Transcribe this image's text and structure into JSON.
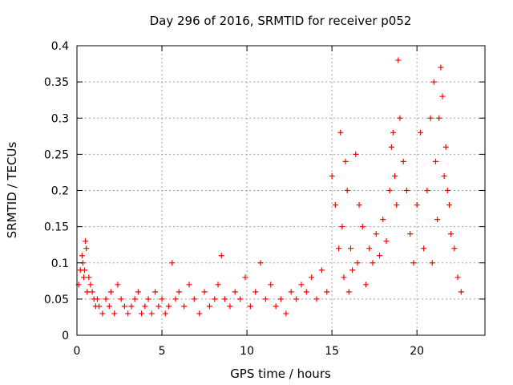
{
  "chart_data": {
    "type": "scatter",
    "title": "Day 296 of 2016, SRMTID for receiver p052",
    "xlabel": "GPS time / hours",
    "ylabel": "SRMTID / TECUs",
    "xlim": [
      0,
      24
    ],
    "ylim": [
      0,
      0.4
    ],
    "x_ticks": [
      0,
      5,
      10,
      15,
      20
    ],
    "x_tick_labels": [
      "0",
      "5",
      "10",
      "15",
      "20"
    ],
    "y_ticks": [
      0,
      0.05,
      0.1,
      0.15,
      0.2,
      0.25,
      0.3,
      0.35,
      0.4
    ],
    "y_tick_labels": [
      "0",
      "0.05",
      "0.1",
      "0.15",
      "0.2",
      "0.25",
      "0.3",
      "0.35",
      "0.4"
    ],
    "grid": true,
    "marker": "+",
    "color": "#ff0000",
    "series": [
      {
        "name": "SRMTID",
        "x": [
          0.1,
          0.2,
          0.3,
          0.35,
          0.4,
          0.45,
          0.5,
          0.55,
          0.6,
          0.7,
          0.8,
          0.9,
          1.0,
          1.1,
          1.2,
          1.3,
          1.5,
          1.7,
          1.9,
          2.0,
          2.2,
          2.4,
          2.6,
          2.8,
          3.0,
          3.2,
          3.4,
          3.6,
          3.8,
          4.0,
          4.2,
          4.4,
          4.6,
          4.8,
          5.0,
          5.2,
          5.4,
          5.6,
          5.8,
          6.0,
          6.3,
          6.6,
          6.9,
          7.2,
          7.5,
          7.8,
          8.1,
          8.3,
          8.5,
          8.7,
          9.0,
          9.3,
          9.6,
          9.9,
          10.2,
          10.5,
          10.8,
          11.1,
          11.4,
          11.7,
          12.0,
          12.3,
          12.6,
          12.9,
          13.2,
          13.5,
          13.8,
          14.1,
          14.4,
          14.7,
          15.0,
          15.2,
          15.4,
          15.5,
          15.6,
          15.7,
          15.8,
          15.9,
          16.0,
          16.1,
          16.2,
          16.4,
          16.5,
          16.6,
          16.8,
          17.0,
          17.2,
          17.4,
          17.6,
          17.8,
          18.0,
          18.2,
          18.4,
          18.5,
          18.6,
          18.7,
          18.8,
          18.9,
          19.0,
          19.2,
          19.4,
          19.6,
          19.8,
          20.0,
          20.2,
          20.4,
          20.6,
          20.8,
          20.9,
          21.0,
          21.1,
          21.2,
          21.3,
          21.4,
          21.5,
          21.6,
          21.7,
          21.8,
          21.9,
          22.0,
          22.2,
          22.4,
          22.6
        ],
        "values": [
          0.07,
          0.09,
          0.11,
          0.1,
          0.08,
          0.09,
          0.13,
          0.12,
          0.06,
          0.08,
          0.07,
          0.06,
          0.05,
          0.04,
          0.05,
          0.04,
          0.03,
          0.05,
          0.04,
          0.06,
          0.03,
          0.07,
          0.05,
          0.04,
          0.03,
          0.04,
          0.05,
          0.06,
          0.03,
          0.04,
          0.05,
          0.03,
          0.06,
          0.04,
          0.05,
          0.03,
          0.04,
          0.1,
          0.05,
          0.06,
          0.04,
          0.07,
          0.05,
          0.03,
          0.06,
          0.04,
          0.05,
          0.07,
          0.11,
          0.05,
          0.04,
          0.06,
          0.05,
          0.08,
          0.04,
          0.06,
          0.1,
          0.05,
          0.07,
          0.04,
          0.05,
          0.03,
          0.06,
          0.05,
          0.07,
          0.06,
          0.08,
          0.05,
          0.09,
          0.06,
          0.22,
          0.18,
          0.12,
          0.28,
          0.15,
          0.08,
          0.24,
          0.2,
          0.06,
          0.12,
          0.09,
          0.25,
          0.1,
          0.18,
          0.15,
          0.07,
          0.12,
          0.1,
          0.14,
          0.11,
          0.16,
          0.13,
          0.2,
          0.26,
          0.28,
          0.22,
          0.18,
          0.38,
          0.3,
          0.24,
          0.2,
          0.14,
          0.1,
          0.18,
          0.28,
          0.12,
          0.2,
          0.3,
          0.1,
          0.35,
          0.24,
          0.16,
          0.3,
          0.37,
          0.33,
          0.22,
          0.26,
          0.2,
          0.18,
          0.14,
          0.12,
          0.08,
          0.06
        ]
      }
    ]
  }
}
